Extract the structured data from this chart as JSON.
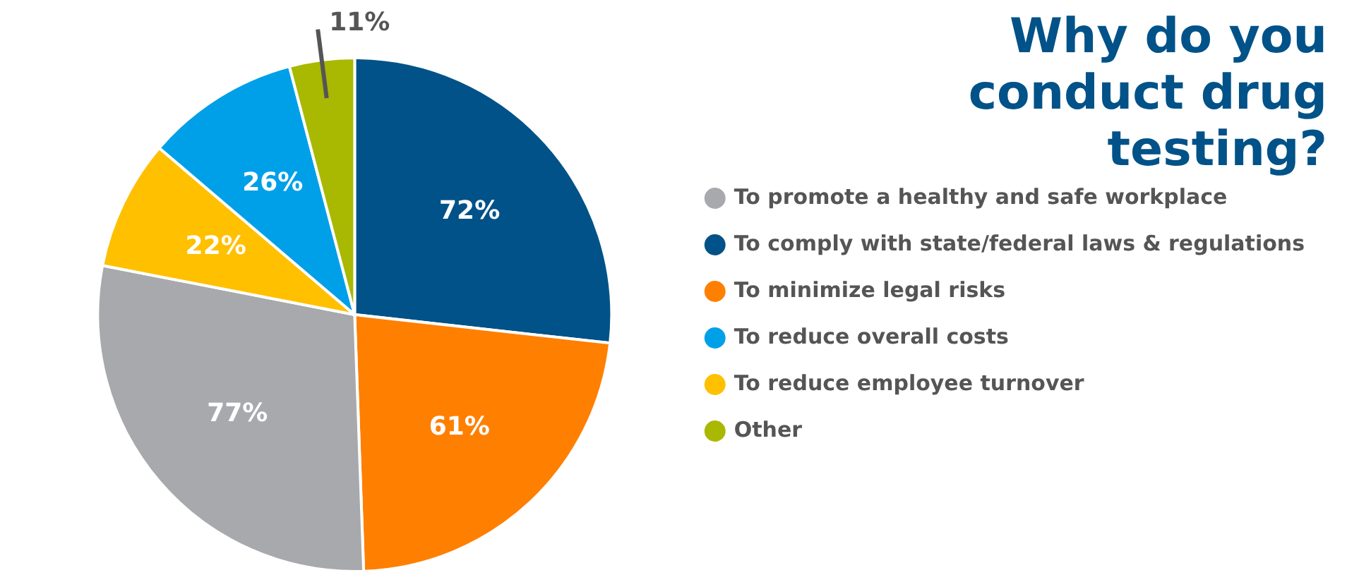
{
  "chart_data": {
    "type": "pie",
    "title": "Why do you conduct drug testing?",
    "categories": [
      "To comply with state/federal laws & regulations",
      "To minimize legal risks",
      "To promote a healthy and safe workplace",
      "To reduce employee turnover",
      "To reduce overall costs",
      "Other"
    ],
    "values": [
      72,
      61,
      77,
      22,
      26,
      11
    ],
    "value_labels": [
      "72%",
      "61%",
      "77%",
      "22%",
      "26%",
      "11%"
    ],
    "colors": [
      "#005288",
      "#ff7f00",
      "#a7a9ac",
      "#ffc000",
      "#00a0e9",
      "#a9b800"
    ],
    "legend": "right"
  }
}
